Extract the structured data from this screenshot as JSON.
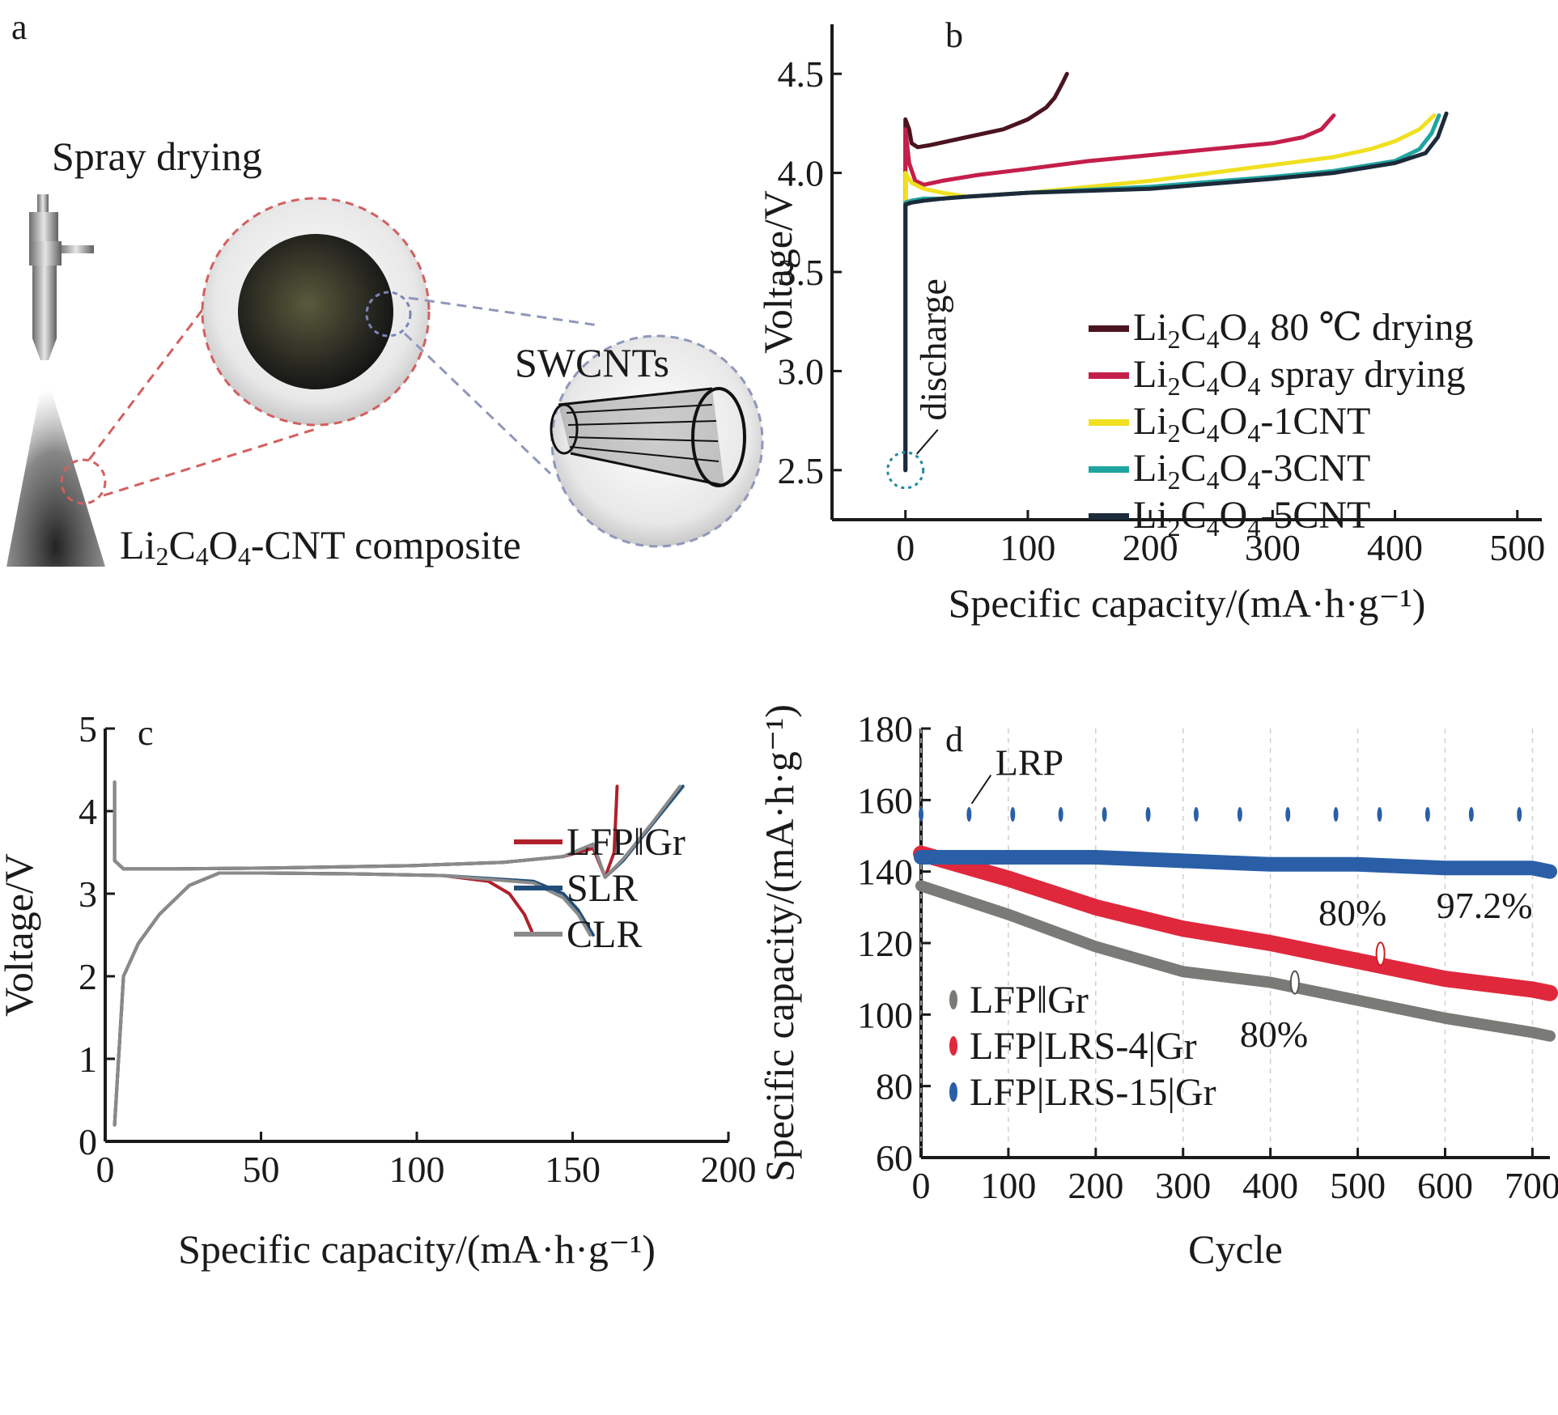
{
  "figure": {
    "panel_a": {
      "label": "a",
      "spray_title": "Spray drying",
      "swcnt_label": "SWCNTs",
      "composite_label": [
        "Li",
        "2",
        "C",
        "4",
        "O",
        "4",
        "-CNT composite"
      ]
    }
  },
  "chart_data": [
    {
      "panel": "b",
      "type": "line",
      "xlabel": "Specific capacity/(mA·h·g⁻¹)",
      "ylabel": "Voltage/V",
      "xlim": [
        -60,
        520
      ],
      "ylim": [
        2.25,
        4.75
      ],
      "xticks": [
        "0",
        "100",
        "200",
        "300",
        "400",
        "500"
      ],
      "yticks": [
        "2.5",
        "3.0",
        "3.5",
        "4.0",
        "4.5"
      ],
      "annotation": "discharge",
      "legend_position": "center-right",
      "series": [
        {
          "name": "Li2C4O4 80 ℃ drying",
          "color": "#4a1420",
          "x": [
            0,
            0,
            3,
            5,
            10,
            20,
            50,
            80,
            100,
            115,
            122,
            128,
            132
          ],
          "y": [
            2.5,
            4.27,
            4.22,
            4.15,
            4.13,
            4.14,
            4.18,
            4.22,
            4.27,
            4.33,
            4.38,
            4.45,
            4.5
          ]
        },
        {
          "name": "Li2C4O4 spray drying",
          "color": "#c41e4a",
          "x": [
            0,
            0,
            3,
            8,
            15,
            30,
            60,
            100,
            150,
            200,
            250,
            300,
            325,
            340,
            350
          ],
          "y": [
            2.5,
            4.22,
            4.05,
            3.96,
            3.94,
            3.96,
            3.99,
            4.02,
            4.06,
            4.09,
            4.12,
            4.15,
            4.18,
            4.22,
            4.29
          ]
        },
        {
          "name": "Li2C4O4-1CNT",
          "color": "#f0e020",
          "x": [
            0,
            0,
            5,
            15,
            30,
            50,
            100,
            200,
            300,
            350,
            380,
            400,
            420,
            432
          ],
          "y": [
            2.5,
            4.0,
            3.95,
            3.92,
            3.9,
            3.88,
            3.9,
            3.96,
            4.04,
            4.08,
            4.12,
            4.16,
            4.22,
            4.29
          ]
        },
        {
          "name": "Li2C4O4-3CNT",
          "color": "#1fa5a0",
          "x": [
            0,
            0,
            5,
            15,
            30,
            50,
            100,
            200,
            300,
            350,
            400,
            420,
            430,
            436
          ],
          "y": [
            2.5,
            3.85,
            3.86,
            3.87,
            3.87,
            3.88,
            3.9,
            3.93,
            3.98,
            4.01,
            4.06,
            4.12,
            4.2,
            4.29
          ]
        },
        {
          "name": "Li2C4O4-5CNT",
          "color": "#1c2a3a",
          "x": [
            0,
            0,
            5,
            15,
            30,
            50,
            100,
            200,
            300,
            350,
            400,
            425,
            435,
            442
          ],
          "y": [
            2.5,
            3.84,
            3.85,
            3.86,
            3.87,
            3.88,
            3.9,
            3.92,
            3.97,
            4.0,
            4.05,
            4.1,
            4.18,
            4.3
          ]
        }
      ]
    },
    {
      "panel": "c",
      "type": "line",
      "xlabel": "Specific capacity/(mA·h·g⁻¹)",
      "ylabel": "Voltage/V",
      "xlim": [
        0,
        200
      ],
      "ylim": [
        0,
        5
      ],
      "xticks": [
        "0",
        "50",
        "100",
        "150",
        "200"
      ],
      "yticks": [
        "0",
        "1",
        "2",
        "3",
        "4",
        "5"
      ],
      "legend_position": "bottom-right",
      "series": [
        {
          "name": "LFP‖Gr",
          "color": "#b0202c",
          "x": [
            0,
            3,
            8,
            15,
            25,
            35,
            50,
            80,
            110,
            125,
            132,
            137,
            140
          ],
          "y": [
            0.2,
            2.0,
            2.4,
            2.75,
            3.1,
            3.25,
            3.25,
            3.24,
            3.22,
            3.15,
            3.0,
            2.75,
            2.5
          ]
        },
        {
          "name": "SLR",
          "color": "#1f4e7a",
          "x": [
            0,
            3,
            8,
            15,
            25,
            35,
            50,
            80,
            110,
            140,
            150,
            155,
            160
          ],
          "y": [
            0.2,
            2.0,
            2.4,
            2.75,
            3.1,
            3.25,
            3.25,
            3.24,
            3.22,
            3.15,
            3.0,
            2.8,
            2.5
          ]
        },
        {
          "name": "CLR",
          "color": "#8a8a8a",
          "x": [
            0,
            3,
            8,
            15,
            25,
            35,
            50,
            80,
            110,
            140,
            150,
            155,
            159
          ],
          "y": [
            0.2,
            2.0,
            2.4,
            2.75,
            3.1,
            3.25,
            3.25,
            3.24,
            3.22,
            3.13,
            2.95,
            2.75,
            2.5
          ]
        },
        {
          "name": "",
          "color": "#b0202c",
          "x": [
            0,
            0,
            3,
            5,
            20,
            50,
            100,
            130,
            150,
            160,
            164,
            167,
            168
          ],
          "y": [
            4.35,
            3.4,
            3.3,
            3.3,
            3.3,
            3.31,
            3.34,
            3.38,
            3.45,
            3.55,
            3.2,
            3.5,
            4.3
          ]
        },
        {
          "name": "",
          "color": "#1f4e7a",
          "x": [
            0,
            0,
            3,
            5,
            20,
            50,
            100,
            130,
            150,
            160,
            164,
            170,
            180,
            190
          ],
          "y": [
            4.35,
            3.4,
            3.3,
            3.3,
            3.3,
            3.31,
            3.34,
            3.38,
            3.45,
            3.6,
            3.2,
            3.4,
            3.85,
            4.3
          ]
        },
        {
          "name": "",
          "color": "#8a8a8a",
          "x": [
            0,
            0,
            3,
            5,
            20,
            50,
            100,
            130,
            150,
            160,
            164,
            170,
            180,
            189
          ],
          "y": [
            4.35,
            3.4,
            3.3,
            3.3,
            3.3,
            3.31,
            3.34,
            3.38,
            3.45,
            3.6,
            3.2,
            3.42,
            3.87,
            4.3
          ]
        }
      ]
    },
    {
      "panel": "d",
      "type": "line",
      "xlabel": "Cycle",
      "ylabel": "Specific capacity/(mA·h·g⁻¹)",
      "xlim": [
        0,
        720
      ],
      "ylim": [
        60,
        180
      ],
      "xticks": [
        "0",
        "100",
        "200",
        "300",
        "400",
        "500",
        "600",
        "700"
      ],
      "yticks": [
        "60",
        "80",
        "100",
        "120",
        "140",
        "160",
        "180"
      ],
      "annotations": [
        "LRP",
        "80%",
        "80%",
        "97.2%"
      ],
      "legend_position": "bottom-left",
      "series": [
        {
          "name": "LFP‖Gr",
          "color": "#7a7a76",
          "x": [
            0,
            100,
            200,
            300,
            400,
            500,
            600,
            700,
            720
          ],
          "y": [
            136,
            128,
            119,
            112,
            109,
            104,
            99,
            95,
            94
          ]
        },
        {
          "name": "LFP|LRS-4|Gr",
          "color": "#e0283c",
          "x": [
            0,
            100,
            200,
            300,
            400,
            500,
            600,
            700,
            720
          ],
          "y": [
            145,
            138,
            130,
            124,
            120,
            115,
            110,
            107,
            106
          ]
        },
        {
          "name": "LFP|LRS-15|Gr",
          "color": "#2a5fa8",
          "x": [
            0,
            100,
            200,
            300,
            400,
            500,
            600,
            700,
            720
          ],
          "y": [
            144,
            144,
            144,
            143,
            142,
            142,
            141,
            141,
            140
          ]
        }
      ],
      "spikes": {
        "x": [
          0,
          55,
          105,
          160,
          210,
          260,
          315,
          365,
          420,
          475,
          525,
          580,
          630,
          685
        ],
        "y": 156
      }
    }
  ],
  "labels": {
    "panel_b": "b",
    "panel_c": "c",
    "panel_d": "d"
  }
}
